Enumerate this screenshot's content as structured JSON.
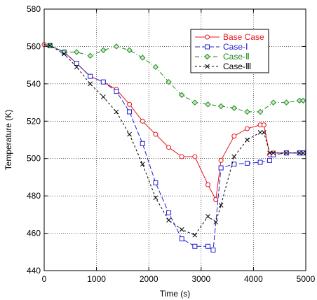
{
  "chart_data": {
    "type": "line",
    "xlabel": "Time (s)",
    "ylabel": "Temperature (K)",
    "xlim": [
      0,
      5000
    ],
    "ylim": [
      440,
      580
    ],
    "xticks": [
      0,
      1000,
      2000,
      3000,
      4000,
      5000
    ],
    "yticks": [
      440,
      460,
      480,
      500,
      520,
      540,
      560,
      580
    ],
    "xtick_labels": [
      "0",
      "1000",
      "2000",
      "3000",
      "4000",
      "5000"
    ],
    "ytick_labels": [
      "440",
      "460",
      "480",
      "500",
      "520",
      "540",
      "560",
      "580"
    ],
    "grid": true,
    "legend_position": "top-right",
    "series": [
      {
        "name": "Base Case",
        "color": "#e8141c",
        "dash": "solid",
        "marker": "circle",
        "x": [
          0,
          110,
          380,
          620,
          880,
          1130,
          1380,
          1630,
          1880,
          2130,
          2380,
          2630,
          2880,
          3130,
          3280,
          3380,
          3630,
          3880,
          4130,
          4200,
          4310,
          4380,
          4630,
          4880,
          4950
        ],
        "y": [
          561,
          560.5,
          557,
          551,
          544,
          541,
          537,
          529,
          520,
          513,
          506,
          501,
          501,
          486,
          478,
          499,
          512,
          516,
          518,
          518,
          502,
          503,
          503,
          503,
          503
        ]
      },
      {
        "name": "Case-Ⅰ",
        "color": "#2020d0",
        "dash": "longdash",
        "marker": "square",
        "x": [
          0,
          110,
          380,
          620,
          880,
          1130,
          1380,
          1630,
          1880,
          2130,
          2380,
          2630,
          2880,
          3130,
          3230,
          3380,
          3630,
          3880,
          4130,
          4310,
          4380,
          4630,
          4880,
          4950
        ],
        "y": [
          561,
          560.5,
          557,
          551,
          544,
          541,
          536,
          525,
          508,
          487,
          471,
          457,
          453,
          453,
          451,
          495,
          497,
          497.5,
          498,
          499,
          502,
          503,
          503,
          503
        ]
      },
      {
        "name": "Case-Ⅱ",
        "color": "#1a8a1a",
        "dash": "dashdot",
        "marker": "diamond",
        "x": [
          0,
          110,
          380,
          620,
          880,
          1130,
          1380,
          1630,
          1880,
          2130,
          2380,
          2630,
          2880,
          3130,
          3380,
          3630,
          3880,
          4130,
          4380,
          4630,
          4880,
          4950
        ],
        "y": [
          561,
          560.5,
          557,
          557,
          555,
          558,
          560,
          558,
          554,
          549,
          541,
          534,
          530,
          529,
          528,
          527,
          525,
          525,
          530,
          530,
          531,
          531
        ]
      },
      {
        "name": "Case-Ⅲ",
        "color": "#000000",
        "dash": "dashed",
        "marker": "x",
        "x": [
          0,
          110,
          380,
          620,
          880,
          1130,
          1380,
          1630,
          1880,
          2130,
          2380,
          2630,
          2880,
          3130,
          3280,
          3380,
          3630,
          3880,
          4130,
          4200,
          4310,
          4380,
          4630,
          4880,
          4950
        ],
        "y": [
          561,
          560.5,
          556,
          549,
          540,
          533,
          525,
          513,
          497,
          479,
          467,
          462,
          459,
          469,
          466,
          475,
          501,
          510,
          514,
          514,
          503,
          503,
          503,
          503,
          503
        ]
      }
    ]
  }
}
